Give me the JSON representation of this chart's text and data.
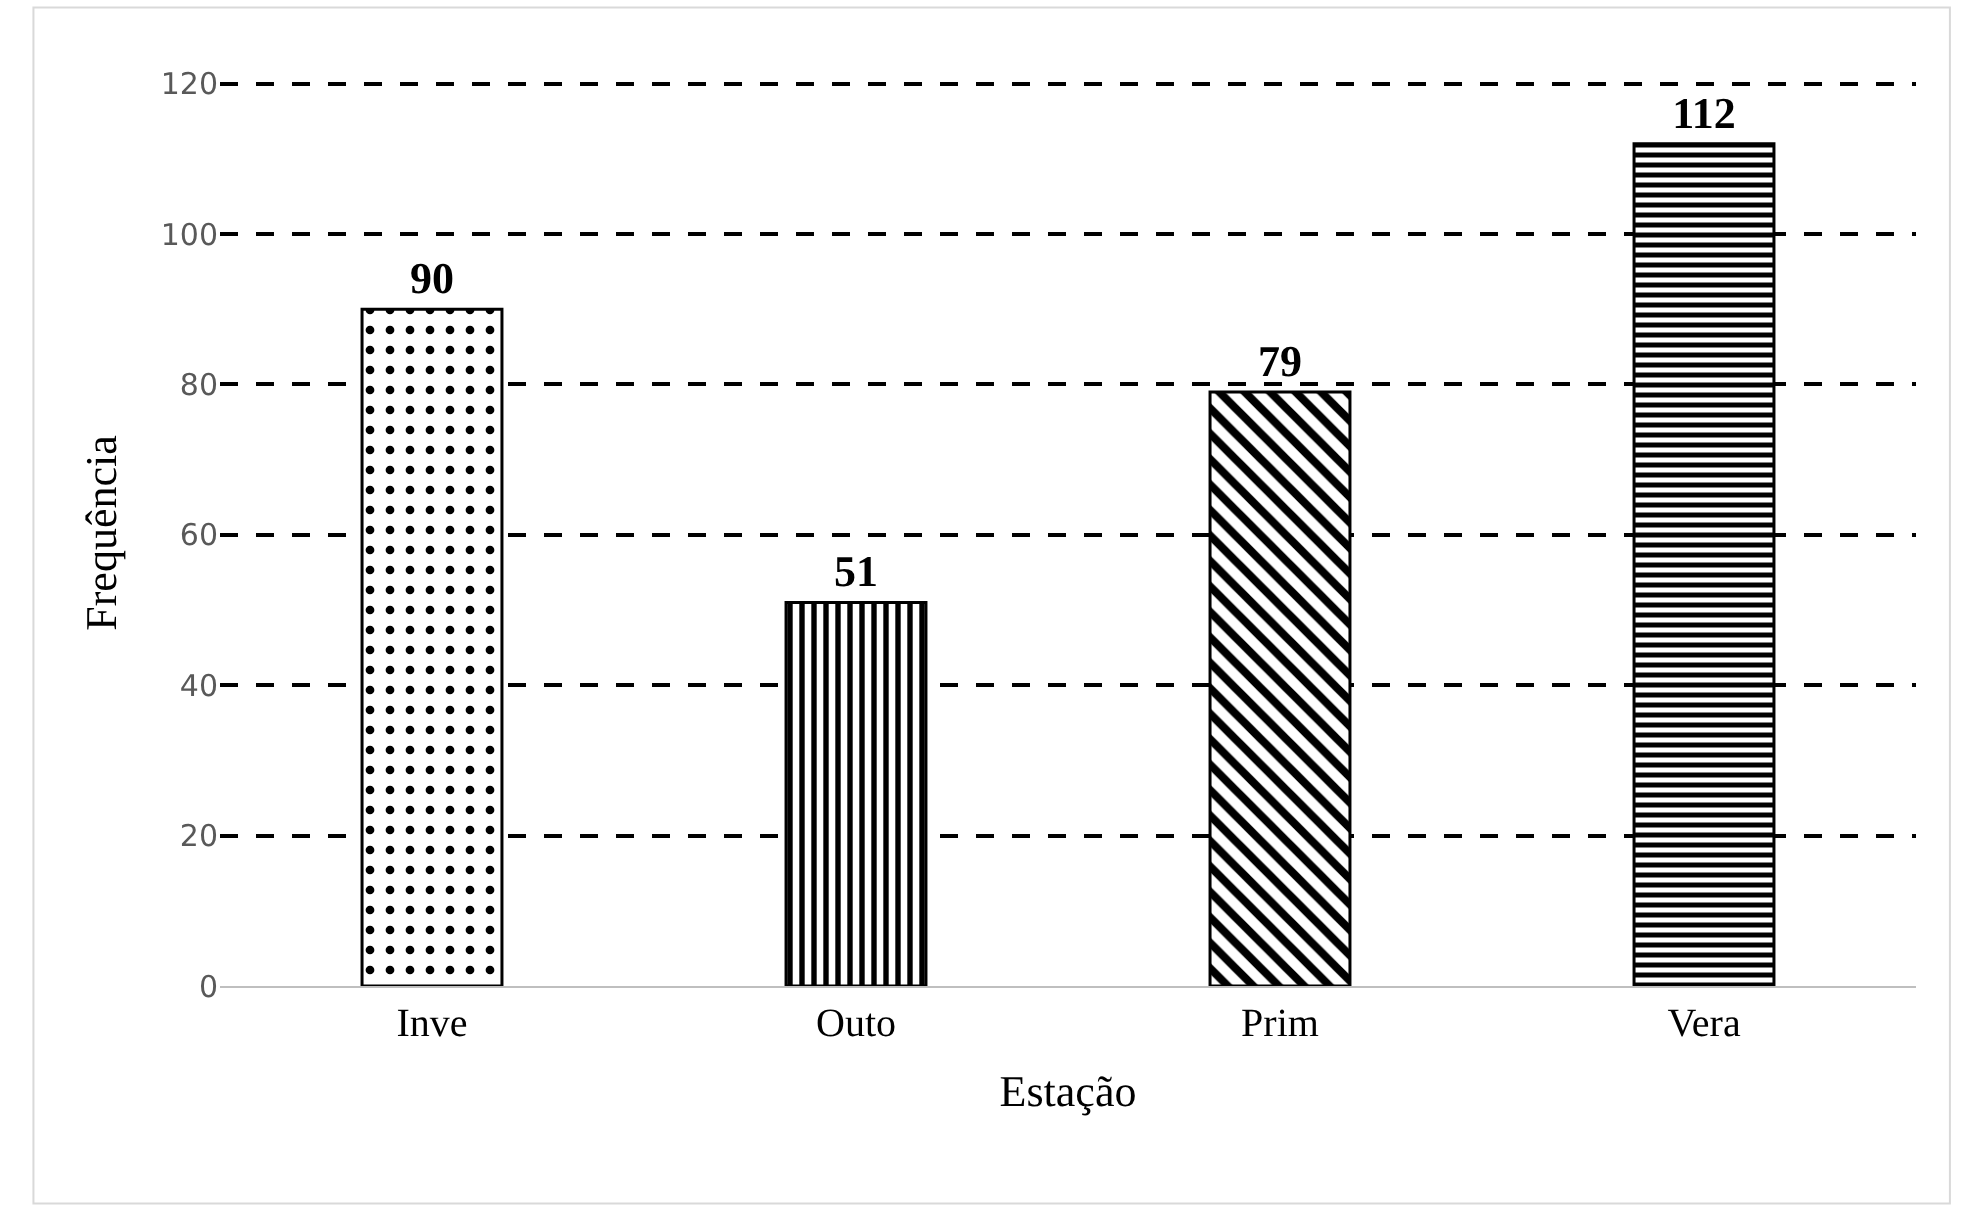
{
  "chart_data": {
    "type": "bar",
    "xlabel": "Estação",
    "ylabel": "Frequência",
    "categories": [
      "Inve",
      "Outo",
      "Prim",
      "Vera"
    ],
    "values": [
      90,
      51,
      79,
      112
    ],
    "colors": [
      "#000000",
      "#000000",
      "#000000",
      "#000000"
    ],
    "ylim": [
      0,
      120
    ],
    "yticks": [
      0,
      20,
      40,
      60,
      80,
      100,
      120
    ],
    "grid": "y",
    "data_labels": true
  }
}
